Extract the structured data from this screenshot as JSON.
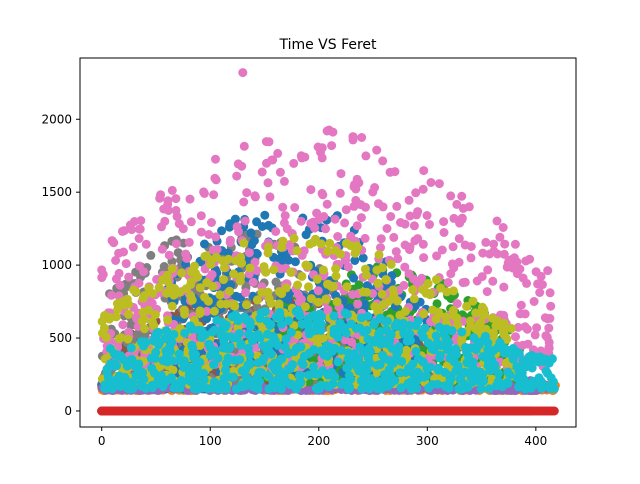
{
  "chart_data": {
    "type": "scatter",
    "title": "Time VS Feret",
    "xlabel": "",
    "ylabel": "",
    "xlim": [
      -20,
      437
    ],
    "ylim": [
      -110,
      2420
    ],
    "x_ticks": [
      0,
      100,
      200,
      300,
      400
    ],
    "y_ticks": [
      0,
      500,
      1000,
      1500,
      2000
    ],
    "x_tick_labels": [
      "0",
      "100",
      "200",
      "300",
      "400"
    ],
    "y_tick_labels": [
      "0",
      "500",
      "1000",
      "1500",
      "2000"
    ],
    "grid": false,
    "legend": "none",
    "series": [
      {
        "name": "tab-blue",
        "color": "#1f77b4",
        "band": {
          "x": [
            0,
            395
          ],
          "y": [
            0,
            0
          ]
        }
      },
      {
        "name": "tab-green",
        "color": "#2ca02c",
        "band": {
          "x": [
            0,
            340
          ],
          "y": [
            0,
            0
          ]
        }
      },
      {
        "name": "tab-red",
        "color": "#d62728",
        "band": {
          "x": [
            0,
            418
          ],
          "y": [
            0,
            0
          ]
        }
      },
      {
        "name": "tab-red-baseline",
        "color": "#d62728",
        "band": {
          "x": [
            0,
            282
          ],
          "y": [
            0,
            0
          ]
        }
      },
      {
        "name": "tab-orange",
        "color": "#ff7f0e",
        "band": {
          "x": [
            0,
            418
          ],
          "y": [
            140,
            230
          ]
        }
      },
      {
        "name": "tab-blue-low",
        "color": "#1f77b4",
        "band": {
          "x": [
            0,
            340
          ],
          "y": [
            150,
            280
          ]
        }
      },
      {
        "name": "tab-purple",
        "color": "#9467bd",
        "band": {
          "x": [
            0,
            410
          ],
          "y": [
            140,
            300
          ]
        }
      },
      {
        "name": "tab-brown",
        "color": "#8c564b",
        "band": {
          "x": [
            20,
            300
          ],
          "y": [
            200,
            800
          ]
        }
      },
      {
        "name": "tab-gray",
        "color": "#7f7f7f",
        "band": {
          "x": [
            0,
            250
          ],
          "y": [
            200,
            1300
          ]
        }
      },
      {
        "name": "tab-green-mid",
        "color": "#2ca02c",
        "band": {
          "x": [
            150,
            385
          ],
          "y": [
            200,
            1000
          ]
        }
      },
      {
        "name": "tab-blue-mid",
        "color": "#1f77b4",
        "band": {
          "x": [
            60,
            300
          ],
          "y": [
            250,
            1450
          ]
        }
      },
      {
        "name": "tab-pink",
        "color": "#e377c2",
        "band": {
          "x": [
            0,
            415
          ],
          "y": [
            300,
            1950
          ]
        },
        "extra_points": [
          [
            130,
            2320
          ]
        ]
      },
      {
        "name": "tab-olive",
        "color": "#bcbd22",
        "band": {
          "x": [
            0,
            380
          ],
          "y": [
            180,
            1200
          ]
        }
      },
      {
        "name": "tab-cyan",
        "color": "#17becf",
        "band": {
          "x": [
            0,
            418
          ],
          "y": [
            150,
            700
          ]
        }
      }
    ]
  }
}
